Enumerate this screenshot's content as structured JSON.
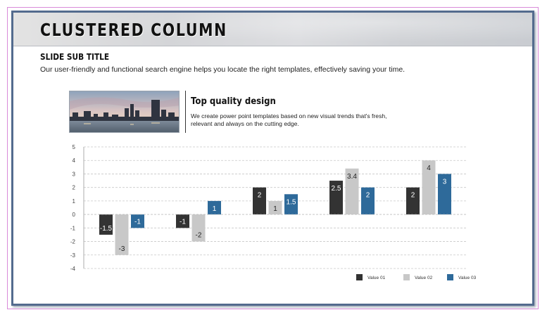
{
  "slide": {
    "title": "CLUSTERED COLUMN",
    "subtitle": "SLIDE SUB TITLE",
    "description": "Our user-friendly and functional search engine helps you locate the right templates, effectively saving your time."
  },
  "feature": {
    "heading": "Top quality design",
    "text": "We create power point templates based on new visual trends that's fresh, relevant and always on the cutting edge.",
    "image": "city-skyline-photo"
  },
  "colors": {
    "series1": "#333333",
    "series2": "#c8c8c8",
    "series3": "#2e6a9a",
    "frame": "#536b8e"
  },
  "chart_data": {
    "type": "bar",
    "categories": [
      "",
      "",
      "",
      "",
      ""
    ],
    "series": [
      {
        "name": "Value 01",
        "values": [
          -1.5,
          -1,
          2,
          2.5,
          2
        ]
      },
      {
        "name": "Value 02",
        "values": [
          -3,
          -2,
          1,
          3.4,
          4
        ]
      },
      {
        "name": "Value 03",
        "values": [
          -1,
          1,
          1.5,
          2,
          3
        ]
      }
    ],
    "yticks": [
      "5",
      "4",
      "3",
      "2",
      "1",
      "0",
      "-1",
      "-2",
      "-3",
      "-4"
    ],
    "ylim": [
      -4,
      5
    ],
    "grid": true,
    "legend": "bottom-right",
    "title": "",
    "xlabel": "",
    "ylabel": ""
  }
}
